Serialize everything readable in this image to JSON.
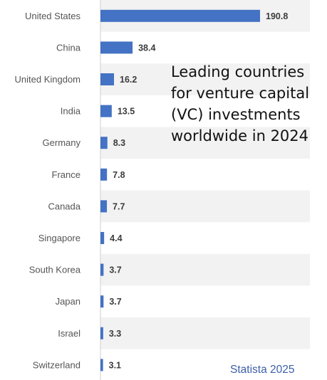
{
  "chart_data": {
    "type": "bar",
    "orientation": "horizontal",
    "title_lines": [
      "Leading countries",
      "for venture capital",
      "(VC) investments",
      "worldwide in 2024"
    ],
    "categories": [
      "United States",
      "China",
      "United Kingdom",
      "India",
      "Germany",
      "France",
      "Canada",
      "Singapore",
      "South Korea",
      "Japan",
      "Israel",
      "Switzerland"
    ],
    "values": [
      190.8,
      38.4,
      16.2,
      13.5,
      8.3,
      7.8,
      7.7,
      4.4,
      3.7,
      3.7,
      3.3,
      3.1
    ],
    "value_labels": [
      "190.8",
      "38.4",
      "16.2",
      "13.5",
      "8.3",
      "7.8",
      "7.7",
      "4.4",
      "3.7",
      "3.7",
      "3.3",
      "3.1"
    ],
    "bar_color": "#4472c4",
    "stripe_color": "#f2f2f2",
    "grid": false,
    "legend": "none"
  },
  "source_note": "Statista 2025"
}
